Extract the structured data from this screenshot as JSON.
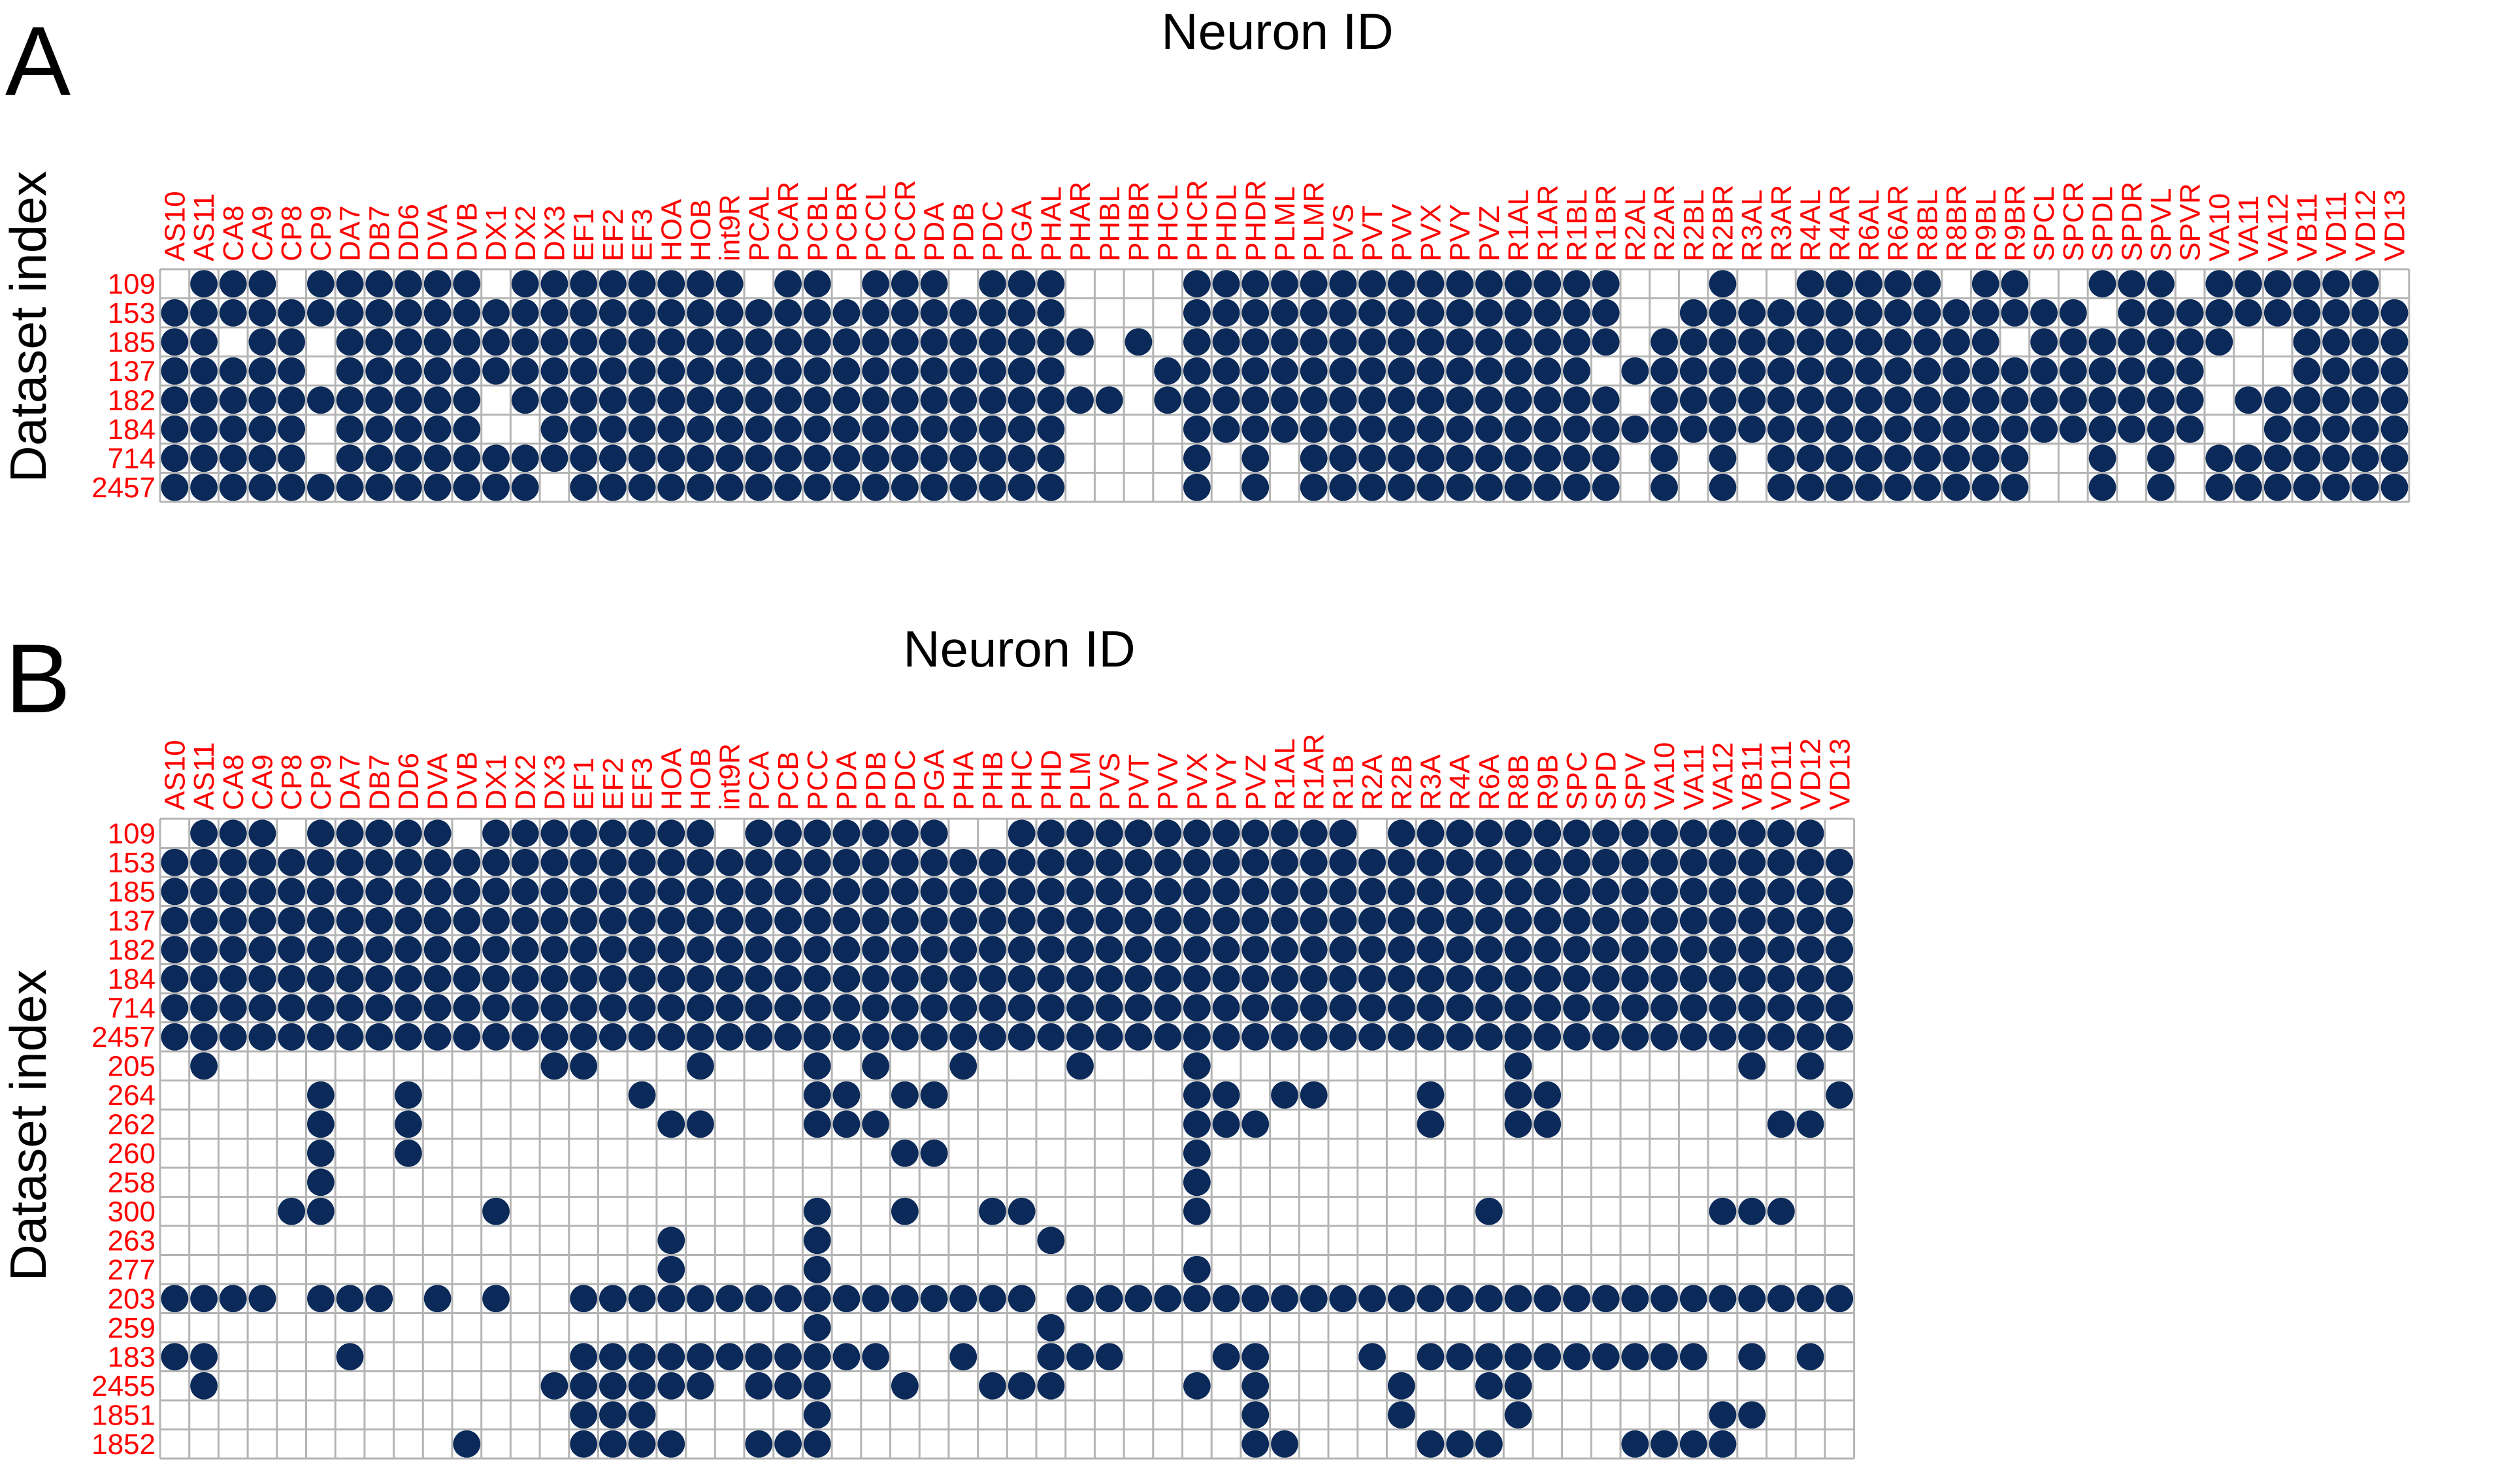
{
  "panels": [
    {
      "letter": "A",
      "title": "Neuron ID",
      "ylabel": "Dataset index",
      "rows": [
        "109",
        "153",
        "185",
        "137",
        "182",
        "184",
        "714",
        "2457"
      ],
      "columns": [
        "AS10",
        "AS11",
        "CA8",
        "CA9",
        "CP8",
        "CP9",
        "DA7",
        "DB7",
        "DD6",
        "DVA",
        "DVB",
        "DX1",
        "DX2",
        "DX3",
        "EF1",
        "EF2",
        "EF3",
        "HOA",
        "HOB",
        "int9R",
        "PCAL",
        "PCAR",
        "PCBL",
        "PCBR",
        "PCCL",
        "PCCR",
        "PDA",
        "PDB",
        "PDC",
        "PGA",
        "PHAL",
        "PHAR",
        "PHBL",
        "PHBR",
        "PHCL",
        "PHCR",
        "PHDL",
        "PHDR",
        "PLML",
        "PLMR",
        "PVS",
        "PVT",
        "PVV",
        "PVX",
        "PVY",
        "PVZ",
        "R1AL",
        "R1AR",
        "R1BL",
        "R1BR",
        "R2AL",
        "R2AR",
        "R2BL",
        "R2BR",
        "R3AL",
        "R3AR",
        "R4AL",
        "R4AR",
        "R6AL",
        "R6AR",
        "R8BL",
        "R8BR",
        "R9BL",
        "R9BR",
        "SPCL",
        "SPCR",
        "SPDL",
        "SPDR",
        "SPVL",
        "SPVR",
        "VA10",
        "VA11",
        "VA12",
        "VB11",
        "VD11",
        "VD12",
        "VD13"
      ],
      "matrix": [
        "01110111111011111111011011101110000111111111111111000100111110110011101111110",
        "11111111111111111111111111111110000111111111111111001111111111111101111111111",
        "11011011111111111111111111111111010111111111111111011111111111101111111001111",
        "11111011111111111111111111111110001111111111111110111111111111111111110001111",
        "11111111111011111111111111111111101111111111111111011111111111111111110111111",
        "11111011111001111111111111111110000111111111111111111111111111111111110011111",
        "11111011111111111111111111111110000101011111111111010101111111110010101111111",
        "11111111111110111111111111111110000101011111111111010101111111110010101111111"
      ]
    },
    {
      "letter": "B",
      "title": "Neuron ID",
      "ylabel": "Dataset index",
      "rows": [
        "109",
        "153",
        "185",
        "137",
        "182",
        "184",
        "714",
        "2457",
        "205",
        "264",
        "262",
        "260",
        "258",
        "300",
        "263",
        "277",
        "203",
        "259",
        "183",
        "2455",
        "1851",
        "1852"
      ],
      "columns": [
        "AS10",
        "AS11",
        "CA8",
        "CA9",
        "CP8",
        "CP9",
        "DA7",
        "DB7",
        "DD6",
        "DVA",
        "DVB",
        "DX1",
        "DX2",
        "DX3",
        "EF1",
        "EF2",
        "EF3",
        "HOA",
        "HOB",
        "int9R",
        "PCA",
        "PCB",
        "PCC",
        "PDA",
        "PDB",
        "PDC",
        "PGA",
        "PHA",
        "PHB",
        "PHC",
        "PHD",
        "PLM",
        "PVS",
        "PVT",
        "PVV",
        "PVX",
        "PVY",
        "PVZ",
        "R1AL",
        "R1AR",
        "R1B",
        "R2A",
        "R2B",
        "R3A",
        "R4A",
        "R6A",
        "R8B",
        "R9B",
        "SPC",
        "SPD",
        "SPV",
        "VA10",
        "VA11",
        "VA12",
        "VB11",
        "VD11",
        "VD12",
        "VD13"
      ],
      "matrix": [
        "0111011111011111111011111110011111111111101111111111111110",
        "1111111111111111111111111111111111111111111111111111111111",
        "1111111111111111111111111111111111111111111111111111111111",
        "1111111111111111111111111111111111111111111111111111111111",
        "1111111111111111111111111111111111111111111111111111111111",
        "1111111111111111111111111111111111111111111111111111111111",
        "1111111111111111111111111111111111111111111111111111111111",
        "1111111111111111111111111111111111111111111111111111111111",
        "0100000000000110001000101001000100010000000000100000001010",
        "0000010010000000100000110110000000011011000100110000000001",
        "0000010010000000011000111000000000011100000100110000000110",
        "0000010010000000000000000110000000010000000000000000000000",
        "0000010000000000000000000000000000010000000000000000000000",
        "0000110000010000000000100100110000010000000001000000011100",
        "0000000000000000010000100000001000000000000000000000000000",
        "0000000000000000010000100000000000010000000000000000000000",
        "1111011101010011111111111111110111111111111111111111111111",
        "0000000000000000000000100000001000000000000000000000000000",
        "1100001000000011111111111001001110001100010111111111101010",
        "0100000000000111111011100100111000010100001001100000000000",
        "0000000000000011100000100000000000000100001000100000011000",
        "0000000000100011110011100000000000000110000111000011110000"
      ]
    }
  ]
}
